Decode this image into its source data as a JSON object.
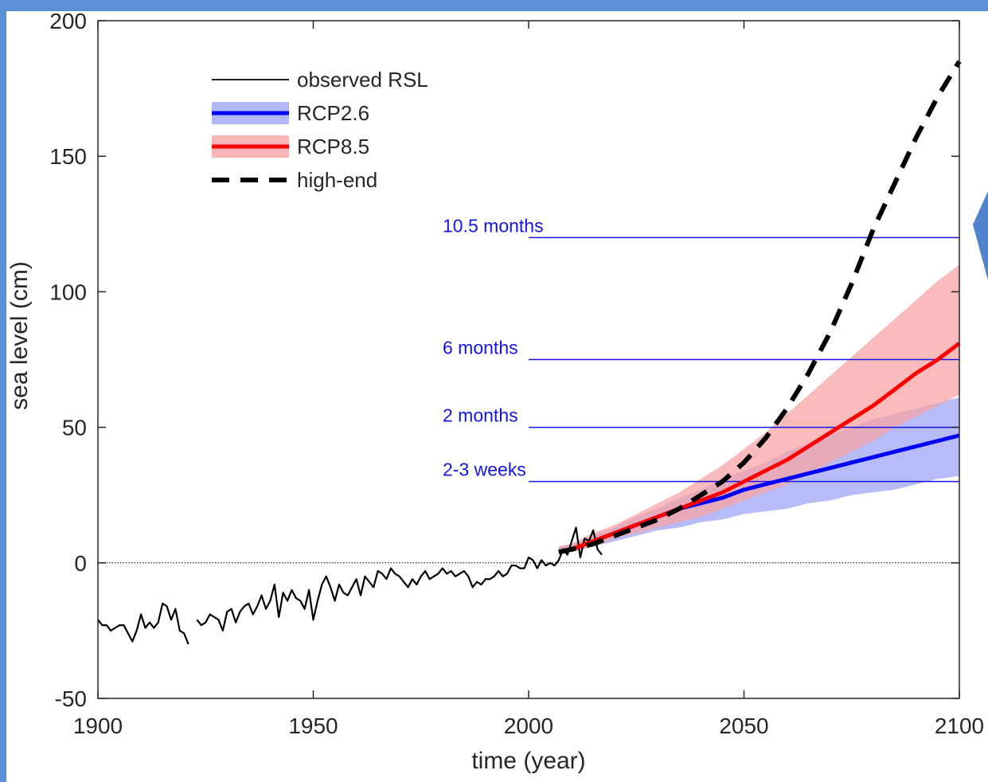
{
  "chart_data": {
    "type": "line",
    "xlabel": "time (year)",
    "ylabel": "sea level (cm)",
    "xlim": [
      1900,
      2100
    ],
    "ylim": [
      -50,
      200
    ],
    "xticks": [
      1900,
      1950,
      2000,
      2050,
      2100
    ],
    "yticks": [
      -50,
      0,
      50,
      100,
      150,
      200
    ],
    "zero_line": true,
    "grid": false,
    "legend_position": "top-left",
    "legend": [
      {
        "label": "observed RSL",
        "style": "thin-solid",
        "color": "#000000"
      },
      {
        "label": "RCP2.6",
        "style": "thick-with-band",
        "color": "#0000ff",
        "band_color": "#9fa6f7"
      },
      {
        "label": "RCP8.5",
        "style": "thick-with-band",
        "color": "#ff0000",
        "band_color": "#f7a4a4"
      },
      {
        "label": "high-end",
        "style": "dashed",
        "color": "#000000"
      }
    ],
    "observed_rsl": [
      [
        1900,
        -21
      ],
      [
        1901,
        -23
      ],
      [
        1902,
        -23
      ],
      [
        1903,
        -25
      ],
      [
        1904,
        -24
      ],
      [
        1905,
        -23
      ],
      [
        1906,
        -23
      ],
      [
        1907,
        -26
      ],
      [
        1908,
        -29
      ],
      [
        1909,
        -25
      ],
      [
        1910,
        -19
      ],
      [
        1911,
        -24
      ],
      [
        1912,
        -22
      ],
      [
        1913,
        -24
      ],
      [
        1914,
        -22
      ],
      [
        1915,
        -15
      ],
      [
        1916,
        -16
      ],
      [
        1917,
        -21
      ],
      [
        1918,
        -17
      ],
      [
        1919,
        -25
      ],
      [
        1920,
        -26
      ],
      [
        1921,
        -30
      ],
      null,
      [
        1923,
        -21
      ],
      [
        1924,
        -23
      ],
      [
        1925,
        -22
      ],
      [
        1926,
        -19
      ],
      [
        1927,
        -20
      ],
      [
        1928,
        -21
      ],
      [
        1929,
        -25
      ],
      [
        1930,
        -18
      ],
      [
        1931,
        -17
      ],
      [
        1932,
        -22
      ],
      [
        1933,
        -18
      ],
      [
        1934,
        -16
      ],
      [
        1935,
        -15
      ],
      [
        1936,
        -19
      ],
      [
        1937,
        -16
      ],
      [
        1938,
        -12
      ],
      [
        1939,
        -17
      ],
      [
        1940,
        -14
      ],
      [
        1941,
        -8
      ],
      [
        1942,
        -20
      ],
      [
        1943,
        -11
      ],
      [
        1944,
        -14
      ],
      [
        1945,
        -10
      ],
      [
        1946,
        -13
      ],
      [
        1947,
        -14
      ],
      [
        1948,
        -17
      ],
      [
        1949,
        -10
      ],
      [
        1950,
        -21
      ],
      [
        1951,
        -14
      ],
      [
        1952,
        -8
      ],
      [
        1953,
        -5
      ],
      [
        1954,
        -9
      ],
      [
        1955,
        -14
      ],
      [
        1956,
        -8
      ],
      [
        1957,
        -11
      ],
      [
        1958,
        -12
      ],
      [
        1959,
        -9
      ],
      [
        1960,
        -6
      ],
      [
        1961,
        -12
      ],
      [
        1962,
        -5
      ],
      [
        1963,
        -7
      ],
      [
        1964,
        -9
      ],
      [
        1965,
        -3
      ],
      [
        1966,
        -4
      ],
      [
        1967,
        -6
      ],
      [
        1968,
        -2
      ],
      [
        1969,
        -4
      ],
      [
        1970,
        -5
      ],
      [
        1971,
        -7
      ],
      [
        1972,
        -9
      ],
      [
        1973,
        -6
      ],
      [
        1974,
        -8
      ],
      [
        1975,
        -5
      ],
      [
        1976,
        -3
      ],
      [
        1977,
        -6
      ],
      [
        1978,
        -5
      ],
      [
        1979,
        -4
      ],
      [
        1980,
        -2
      ],
      [
        1981,
        -4
      ],
      [
        1982,
        -3
      ],
      [
        1983,
        -5
      ],
      [
        1984,
        -4
      ],
      [
        1985,
        -3
      ],
      [
        1986,
        -5
      ],
      [
        1987,
        -9
      ],
      [
        1988,
        -7
      ],
      [
        1989,
        -8
      ],
      [
        1990,
        -6
      ],
      [
        1991,
        -6
      ],
      [
        1992,
        -5
      ],
      [
        1993,
        -3
      ],
      [
        1994,
        -5
      ],
      [
        1995,
        -4
      ],
      [
        1996,
        -1
      ],
      [
        1997,
        -1
      ],
      [
        1998,
        -2
      ],
      [
        1999,
        -2
      ],
      [
        2000,
        2
      ],
      [
        2001,
        1
      ],
      [
        2002,
        -2
      ],
      [
        2003,
        1
      ],
      [
        2004,
        -1
      ],
      [
        2005,
        0
      ],
      [
        2006,
        -1
      ],
      [
        2007,
        1
      ],
      [
        2008,
        5
      ],
      [
        2009,
        3
      ],
      [
        2010,
        8
      ],
      [
        2011,
        13
      ],
      [
        2012,
        2
      ],
      [
        2013,
        9
      ],
      [
        2014,
        8
      ],
      [
        2015,
        12
      ],
      [
        2016,
        5
      ],
      [
        2017,
        3
      ]
    ],
    "series": [
      {
        "name": "RCP2.6",
        "x": [
          2007,
          2010,
          2015,
          2020,
          2025,
          2030,
          2035,
          2040,
          2045,
          2050,
          2055,
          2060,
          2065,
          2070,
          2075,
          2080,
          2085,
          2090,
          2095,
          2100
        ],
        "values": [
          4,
          5,
          8,
          11,
          14,
          17,
          20,
          22,
          24,
          27,
          29,
          31,
          33,
          35,
          37,
          39,
          41,
          43,
          45,
          47
        ],
        "lower": [
          3,
          4,
          6,
          8,
          10,
          12,
          13,
          15,
          16,
          18,
          19,
          20,
          22,
          23,
          25,
          26,
          27,
          29,
          31,
          32
        ],
        "upper": [
          6,
          7,
          10,
          13,
          17,
          20,
          24,
          27,
          31,
          34,
          37,
          41,
          44,
          47,
          50,
          53,
          55,
          57,
          59,
          61
        ]
      },
      {
        "name": "RCP8.5",
        "x": [
          2007,
          2010,
          2015,
          2020,
          2025,
          2030,
          2035,
          2040,
          2045,
          2050,
          2055,
          2060,
          2065,
          2070,
          2075,
          2080,
          2085,
          2090,
          2095,
          2100
        ],
        "values": [
          4,
          5,
          8,
          11,
          14,
          17,
          20,
          23,
          26,
          30,
          34,
          38,
          43,
          48,
          53,
          58,
          64,
          70,
          75,
          81
        ],
        "lower": [
          3,
          4,
          6,
          9,
          11,
          13,
          15,
          17,
          20,
          23,
          26,
          29,
          33,
          37,
          41,
          45,
          50,
          54,
          58,
          62
        ],
        "upper": [
          6,
          7,
          11,
          14,
          18,
          22,
          26,
          31,
          36,
          42,
          48,
          55,
          62,
          69,
          76,
          83,
          90,
          97,
          104,
          110
        ]
      },
      {
        "name": "high-end",
        "x": [
          2007,
          2010,
          2015,
          2020,
          2025,
          2030,
          2035,
          2040,
          2045,
          2050,
          2055,
          2060,
          2065,
          2070,
          2075,
          2080,
          2085,
          2090,
          2095,
          2100
        ],
        "values": [
          4,
          5,
          7,
          10,
          13,
          16,
          20,
          25,
          30,
          37,
          46,
          57,
          70,
          85,
          103,
          123,
          140,
          157,
          172,
          185
        ]
      }
    ],
    "annotations": [
      {
        "label": "10.5 months",
        "y": 120,
        "x_start": 2000,
        "x_end": 2100,
        "color": "#1414e6"
      },
      {
        "label": "6 months",
        "y": 75,
        "x_start": 2000,
        "x_end": 2100,
        "color": "#1414e6"
      },
      {
        "label": "2 months",
        "y": 50,
        "x_start": 2000,
        "x_end": 2100,
        "color": "#1414e6"
      },
      {
        "label": "2-3 weeks",
        "y": 30,
        "x_start": 2000,
        "x_end": 2100,
        "color": "#1414e6"
      }
    ],
    "colors": {
      "background": "#5b8fd6",
      "decor_triangle": "#4f83cd"
    }
  }
}
